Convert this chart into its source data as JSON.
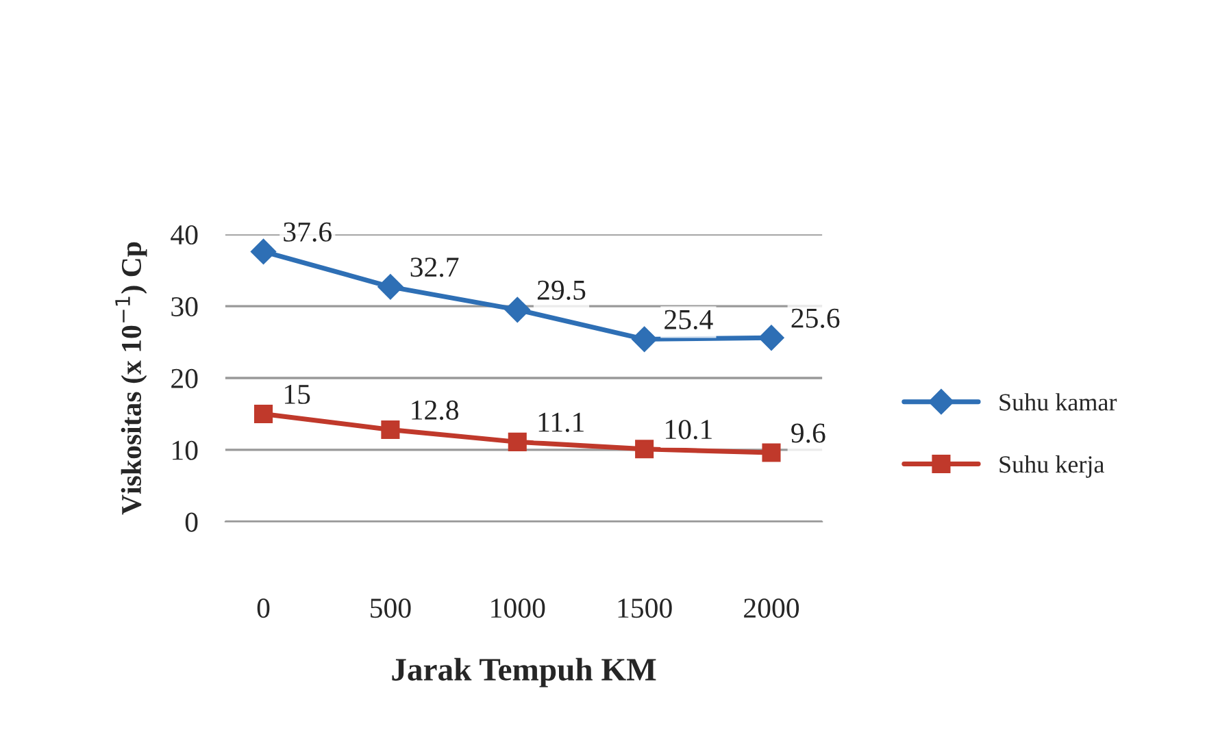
{
  "chart_data": {
    "type": "line",
    "xlabel": "Jarak Tempuh KM",
    "ylabel": "Viskositas (x 10$^{−1}$) Cp",
    "categories": [
      "0",
      "500",
      "1000",
      "1500",
      "2000"
    ],
    "series": [
      {
        "name": "Suhu kamar",
        "color": "#2e6fb5",
        "marker": "diamond",
        "values": [
          37.6,
          32.7,
          29.5,
          25.4,
          25.6
        ]
      },
      {
        "name": "Suhu kerja",
        "color": "#c0392b",
        "marker": "square",
        "values": [
          15,
          12.8,
          11.1,
          10.1,
          9.6
        ]
      }
    ],
    "ylim": [
      0,
      40
    ],
    "yticks": [
      0,
      10,
      20,
      30,
      40
    ],
    "grid": "y",
    "legend": "right",
    "data_labels": true
  }
}
